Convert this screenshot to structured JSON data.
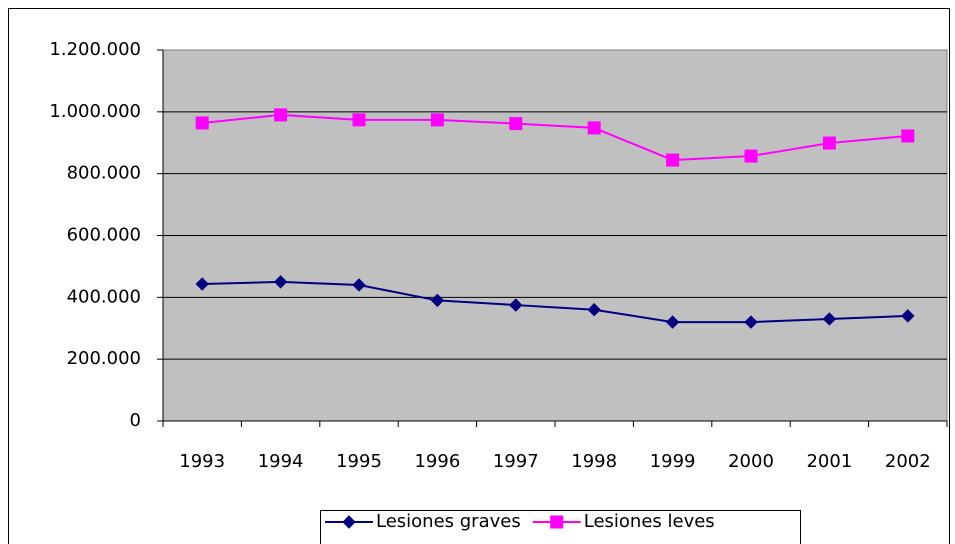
{
  "chart_data": {
    "type": "line",
    "categories": [
      "1993",
      "1994",
      "1995",
      "1996",
      "1997",
      "1998",
      "1999",
      "2000",
      "2001",
      "2002"
    ],
    "series": [
      {
        "name": "Lesiones graves",
        "color": "#000080",
        "marker": "diamond",
        "values": [
          443000,
          450000,
          440000,
          390000,
          375000,
          360000,
          320000,
          320000,
          330000,
          340000
        ]
      },
      {
        "name": "Lesiones leves",
        "color": "#ff00ff",
        "marker": "square",
        "values": [
          964000,
          990000,
          974000,
          974000,
          962000,
          948000,
          844000,
          857000,
          899000,
          922000
        ]
      }
    ],
    "ylim": [
      0,
      1200000
    ],
    "yticks": [
      0,
      {
        "value": 200000,
        "label": "200.000"
      },
      {
        "value": 400000,
        "label": "400.000"
      },
      {
        "value": 600000,
        "label": "600.000"
      },
      {
        "value": 800000,
        "label": "800.000"
      },
      {
        "value": 1000000,
        "label": "1.000.000"
      },
      {
        "value": 1200000,
        "label": "1.200.000"
      }
    ],
    "grid": true,
    "plot_background": "#c0c0c0",
    "legend": "bottom"
  }
}
